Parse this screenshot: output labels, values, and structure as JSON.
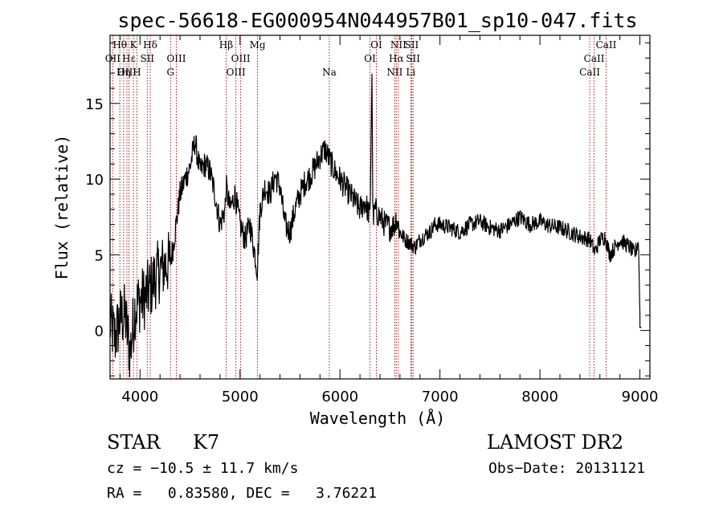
{
  "chart_data": {
    "type": "line",
    "title": "spec-56618-EG000954N044957B01_sp10-047.fits",
    "xlabel": "Wavelength (Å)",
    "ylabel": "Flux (relative)",
    "xlim": [
      3700,
      9100
    ],
    "ylim": [
      -3.2,
      19.5
    ],
    "xticks": [
      4000,
      5000,
      6000,
      7000,
      8000,
      9000
    ],
    "yticks": [
      0,
      5,
      10,
      15
    ],
    "grid": false,
    "series": [
      {
        "x": [
          3700,
          3750,
          3800,
          3850,
          3900,
          3950,
          4000,
          4050,
          4100,
          4150,
          4200,
          4250,
          4300,
          4330,
          4350,
          4400,
          4450,
          4500,
          4550,
          4600,
          4650,
          4700,
          4750,
          4800,
          4850,
          4861,
          4900,
          4950,
          5000,
          5050,
          5100,
          5150,
          5172,
          5200,
          5250,
          5300,
          5350,
          5400,
          5450,
          5500,
          5550,
          5600,
          5650,
          5700,
          5750,
          5800,
          5850,
          5893,
          5950,
          6000,
          6050,
          6100,
          6150,
          6200,
          6250,
          6300,
          6320,
          6330,
          6350,
          6400,
          6450,
          6500,
          6550,
          6563,
          6600,
          6650,
          6700,
          6750,
          6800,
          6850,
          6900,
          6950,
          7000,
          7100,
          7200,
          7300,
          7400,
          7500,
          7600,
          7700,
          7800,
          7900,
          8000,
          8100,
          8200,
          8300,
          8400,
          8500,
          8550,
          8600,
          8650,
          8700,
          8800,
          8900,
          8950,
          8985,
          9000
        ],
        "y": [
          0.5,
          -0.5,
          0.8,
          1.0,
          -1.5,
          1.5,
          2.0,
          2.2,
          2.8,
          3.5,
          4.0,
          4.3,
          4.5,
          5.5,
          6.5,
          9.0,
          10.0,
          10.8,
          12.5,
          10.5,
          11.0,
          10.5,
          9.0,
          7.0,
          8.0,
          9.5,
          8.0,
          9.0,
          7.0,
          6.0,
          7.0,
          5.0,
          4.0,
          8.0,
          9.5,
          9.0,
          10.2,
          9.5,
          7.0,
          6.5,
          8.0,
          9.0,
          9.8,
          10.2,
          10.8,
          11.5,
          12.0,
          11.3,
          10.5,
          10.0,
          9.5,
          9.0,
          8.5,
          8.0,
          8.5,
          7.5,
          17.0,
          7.2,
          8.0,
          7.5,
          7.0,
          6.8,
          7.0,
          7.5,
          6.5,
          6.0,
          5.8,
          5.5,
          6.0,
          6.3,
          6.5,
          7.0,
          7.0,
          6.8,
          6.5,
          7.0,
          7.2,
          6.8,
          6.6,
          7.0,
          7.5,
          7.0,
          7.2,
          6.9,
          6.8,
          6.5,
          6.2,
          6.0,
          5.2,
          6.0,
          6.2,
          5.0,
          6.0,
          5.5,
          5.0,
          6.0,
          1.0
        ]
      }
    ],
    "lines": [
      {
        "label": "Hθ",
        "wave": 3798,
        "row": 1
      },
      {
        "label": "OII",
        "wave": 3727,
        "row": 2
      },
      {
        "label": "OIII",
        "wave": 3869,
        "row": 3
      },
      {
        "label": "K",
        "wave": 3934,
        "row": 1
      },
      {
        "label": "H",
        "wave": 3969,
        "row": 3
      },
      {
        "label": "Hε",
        "wave": 3889,
        "row": 2
      },
      {
        "label": "Hη",
        "wave": 3835,
        "row": 3
      },
      {
        "label": "Hδ",
        "wave": 4102,
        "row": 1
      },
      {
        "label": "SII",
        "wave": 4072,
        "row": 2
      },
      {
        "label": "G",
        "wave": 4305,
        "row": 3
      },
      {
        "label": "OIII",
        "wave": 4363,
        "row": 2
      },
      {
        "label": "Hβ",
        "wave": 4861,
        "row": 1
      },
      {
        "label": "OIII",
        "wave": 4959,
        "row": 3
      },
      {
        "label": "OIII",
        "wave": 5007,
        "row": 2
      },
      {
        "label": "Mg",
        "wave": 5175,
        "row": 1
      },
      {
        "label": "Na",
        "wave": 5893,
        "row": 3
      },
      {
        "label": "OI",
        "wave": 6300,
        "row": 2
      },
      {
        "label": "OI",
        "wave": 6364,
        "row": 1
      },
      {
        "label": "NII",
        "wave": 6548,
        "row": 3
      },
      {
        "label": "NII",
        "wave": 6584,
        "row": 1
      },
      {
        "label": "Hα",
        "wave": 6563,
        "row": 2
      },
      {
        "label": "SII",
        "wave": 6717,
        "row": 1
      },
      {
        "label": "SII",
        "wave": 6731,
        "row": 2
      },
      {
        "label": "Li",
        "wave": 6708,
        "row": 3
      },
      {
        "label": "CaII",
        "wave": 8498,
        "row": 3
      },
      {
        "label": "CaII",
        "wave": 8542,
        "row": 2
      },
      {
        "label": "CaII",
        "wave": 8662,
        "row": 1
      }
    ]
  },
  "info": {
    "class_text": "STAR",
    "subclass_text": "K7",
    "survey_text": "LAMOST DR2",
    "cz_text": "cz = −10.5 ± 11.7 km/s",
    "obs_date_text": "Obs−Date: 20131121",
    "radec_text": "RA =   0.83580, DEC =   3.76221"
  }
}
